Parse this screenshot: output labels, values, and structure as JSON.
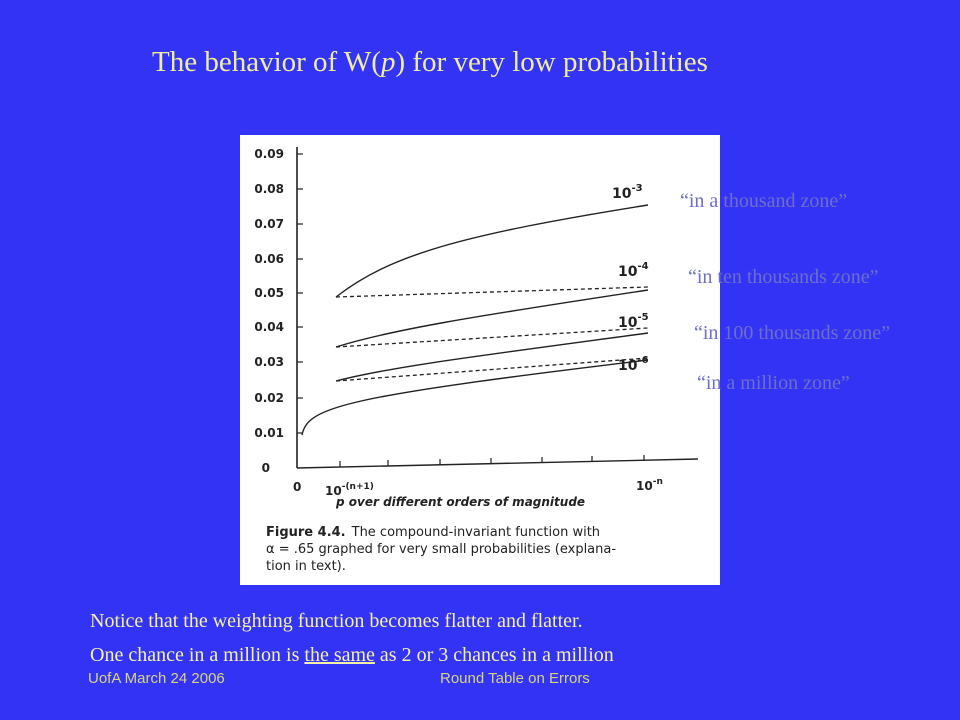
{
  "slide": {
    "background": "#3333f5",
    "title_part1": "The behavior of W(",
    "title_var": "p",
    "title_part2": ") for very low probabilities"
  },
  "figure": {
    "y_ticks": [
      "0.09",
      "0.08",
      "0.07",
      "0.06",
      "0.05",
      "0.04",
      "0.03",
      "0.02",
      "0.01",
      "0"
    ],
    "x_label_start": "0",
    "x_label_mid_base": "10",
    "x_label_mid_exp": "-(n+1)",
    "x_label_end_base": "10",
    "x_label_end_exp": "-n",
    "x_axis_caption": "p over different orders of magnitude",
    "curve_labels": [
      {
        "base": "10",
        "exp": "-3"
      },
      {
        "base": "10",
        "exp": "-4"
      },
      {
        "base": "10",
        "exp": "-5"
      },
      {
        "base": "10",
        "exp": "-6"
      }
    ],
    "caption_bold": "Figure 4.4.",
    "caption_line1": "The compound-invariant function with",
    "caption_line2": "α = .65 graphed for very small probabilities (explana-",
    "caption_line3": "tion in text)."
  },
  "zones": [
    "“in a thousand zone”",
    "“in ten thousands zone”",
    "“in 100 thousands zone”",
    "“in a million zone”"
  ],
  "notice": {
    "line1": "Notice that the weighting function becomes flatter and flatter.",
    "line2_start": "One chance in a million is ",
    "line2_underlined": "the same",
    "line2_end": " as 2 or 3 chances in a million"
  },
  "footer": {
    "left": "UofA  March 24 2006",
    "center": "Round Table on Errors"
  }
}
